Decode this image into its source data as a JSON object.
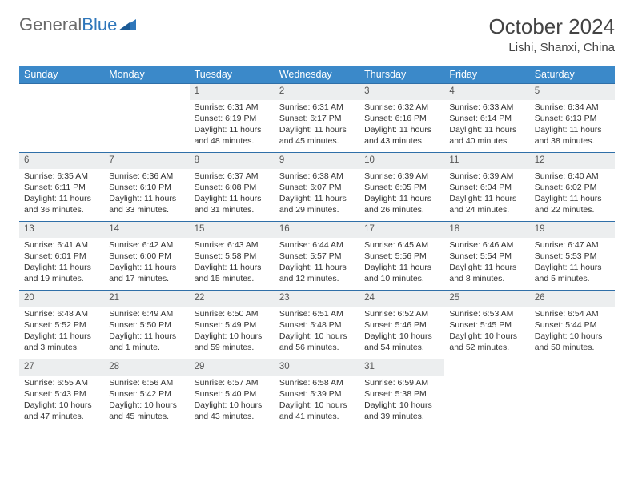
{
  "logo": {
    "text1": "General",
    "text2": "Blue"
  },
  "title": "October 2024",
  "location": "Lishi, Shanxi, China",
  "colors": {
    "header_bg": "#3b89c9",
    "header_text": "#ffffff",
    "daynum_bg": "#eceeef",
    "rule": "#2f6fa8",
    "logo_gray": "#6a6a6a",
    "logo_blue": "#2f77bb"
  },
  "weekdays": [
    "Sunday",
    "Monday",
    "Tuesday",
    "Wednesday",
    "Thursday",
    "Friday",
    "Saturday"
  ],
  "weeks": [
    [
      {
        "n": "",
        "sr": "",
        "ss": "",
        "dl": ""
      },
      {
        "n": "",
        "sr": "",
        "ss": "",
        "dl": ""
      },
      {
        "n": "1",
        "sr": "Sunrise: 6:31 AM",
        "ss": "Sunset: 6:19 PM",
        "dl": "Daylight: 11 hours and 48 minutes."
      },
      {
        "n": "2",
        "sr": "Sunrise: 6:31 AM",
        "ss": "Sunset: 6:17 PM",
        "dl": "Daylight: 11 hours and 45 minutes."
      },
      {
        "n": "3",
        "sr": "Sunrise: 6:32 AM",
        "ss": "Sunset: 6:16 PM",
        "dl": "Daylight: 11 hours and 43 minutes."
      },
      {
        "n": "4",
        "sr": "Sunrise: 6:33 AM",
        "ss": "Sunset: 6:14 PM",
        "dl": "Daylight: 11 hours and 40 minutes."
      },
      {
        "n": "5",
        "sr": "Sunrise: 6:34 AM",
        "ss": "Sunset: 6:13 PM",
        "dl": "Daylight: 11 hours and 38 minutes."
      }
    ],
    [
      {
        "n": "6",
        "sr": "Sunrise: 6:35 AM",
        "ss": "Sunset: 6:11 PM",
        "dl": "Daylight: 11 hours and 36 minutes."
      },
      {
        "n": "7",
        "sr": "Sunrise: 6:36 AM",
        "ss": "Sunset: 6:10 PM",
        "dl": "Daylight: 11 hours and 33 minutes."
      },
      {
        "n": "8",
        "sr": "Sunrise: 6:37 AM",
        "ss": "Sunset: 6:08 PM",
        "dl": "Daylight: 11 hours and 31 minutes."
      },
      {
        "n": "9",
        "sr": "Sunrise: 6:38 AM",
        "ss": "Sunset: 6:07 PM",
        "dl": "Daylight: 11 hours and 29 minutes."
      },
      {
        "n": "10",
        "sr": "Sunrise: 6:39 AM",
        "ss": "Sunset: 6:05 PM",
        "dl": "Daylight: 11 hours and 26 minutes."
      },
      {
        "n": "11",
        "sr": "Sunrise: 6:39 AM",
        "ss": "Sunset: 6:04 PM",
        "dl": "Daylight: 11 hours and 24 minutes."
      },
      {
        "n": "12",
        "sr": "Sunrise: 6:40 AM",
        "ss": "Sunset: 6:02 PM",
        "dl": "Daylight: 11 hours and 22 minutes."
      }
    ],
    [
      {
        "n": "13",
        "sr": "Sunrise: 6:41 AM",
        "ss": "Sunset: 6:01 PM",
        "dl": "Daylight: 11 hours and 19 minutes."
      },
      {
        "n": "14",
        "sr": "Sunrise: 6:42 AM",
        "ss": "Sunset: 6:00 PM",
        "dl": "Daylight: 11 hours and 17 minutes."
      },
      {
        "n": "15",
        "sr": "Sunrise: 6:43 AM",
        "ss": "Sunset: 5:58 PM",
        "dl": "Daylight: 11 hours and 15 minutes."
      },
      {
        "n": "16",
        "sr": "Sunrise: 6:44 AM",
        "ss": "Sunset: 5:57 PM",
        "dl": "Daylight: 11 hours and 12 minutes."
      },
      {
        "n": "17",
        "sr": "Sunrise: 6:45 AM",
        "ss": "Sunset: 5:56 PM",
        "dl": "Daylight: 11 hours and 10 minutes."
      },
      {
        "n": "18",
        "sr": "Sunrise: 6:46 AM",
        "ss": "Sunset: 5:54 PM",
        "dl": "Daylight: 11 hours and 8 minutes."
      },
      {
        "n": "19",
        "sr": "Sunrise: 6:47 AM",
        "ss": "Sunset: 5:53 PM",
        "dl": "Daylight: 11 hours and 5 minutes."
      }
    ],
    [
      {
        "n": "20",
        "sr": "Sunrise: 6:48 AM",
        "ss": "Sunset: 5:52 PM",
        "dl": "Daylight: 11 hours and 3 minutes."
      },
      {
        "n": "21",
        "sr": "Sunrise: 6:49 AM",
        "ss": "Sunset: 5:50 PM",
        "dl": "Daylight: 11 hours and 1 minute."
      },
      {
        "n": "22",
        "sr": "Sunrise: 6:50 AM",
        "ss": "Sunset: 5:49 PM",
        "dl": "Daylight: 10 hours and 59 minutes."
      },
      {
        "n": "23",
        "sr": "Sunrise: 6:51 AM",
        "ss": "Sunset: 5:48 PM",
        "dl": "Daylight: 10 hours and 56 minutes."
      },
      {
        "n": "24",
        "sr": "Sunrise: 6:52 AM",
        "ss": "Sunset: 5:46 PM",
        "dl": "Daylight: 10 hours and 54 minutes."
      },
      {
        "n": "25",
        "sr": "Sunrise: 6:53 AM",
        "ss": "Sunset: 5:45 PM",
        "dl": "Daylight: 10 hours and 52 minutes."
      },
      {
        "n": "26",
        "sr": "Sunrise: 6:54 AM",
        "ss": "Sunset: 5:44 PM",
        "dl": "Daylight: 10 hours and 50 minutes."
      }
    ],
    [
      {
        "n": "27",
        "sr": "Sunrise: 6:55 AM",
        "ss": "Sunset: 5:43 PM",
        "dl": "Daylight: 10 hours and 47 minutes."
      },
      {
        "n": "28",
        "sr": "Sunrise: 6:56 AM",
        "ss": "Sunset: 5:42 PM",
        "dl": "Daylight: 10 hours and 45 minutes."
      },
      {
        "n": "29",
        "sr": "Sunrise: 6:57 AM",
        "ss": "Sunset: 5:40 PM",
        "dl": "Daylight: 10 hours and 43 minutes."
      },
      {
        "n": "30",
        "sr": "Sunrise: 6:58 AM",
        "ss": "Sunset: 5:39 PM",
        "dl": "Daylight: 10 hours and 41 minutes."
      },
      {
        "n": "31",
        "sr": "Sunrise: 6:59 AM",
        "ss": "Sunset: 5:38 PM",
        "dl": "Daylight: 10 hours and 39 minutes."
      },
      {
        "n": "",
        "sr": "",
        "ss": "",
        "dl": ""
      },
      {
        "n": "",
        "sr": "",
        "ss": "",
        "dl": ""
      }
    ]
  ]
}
